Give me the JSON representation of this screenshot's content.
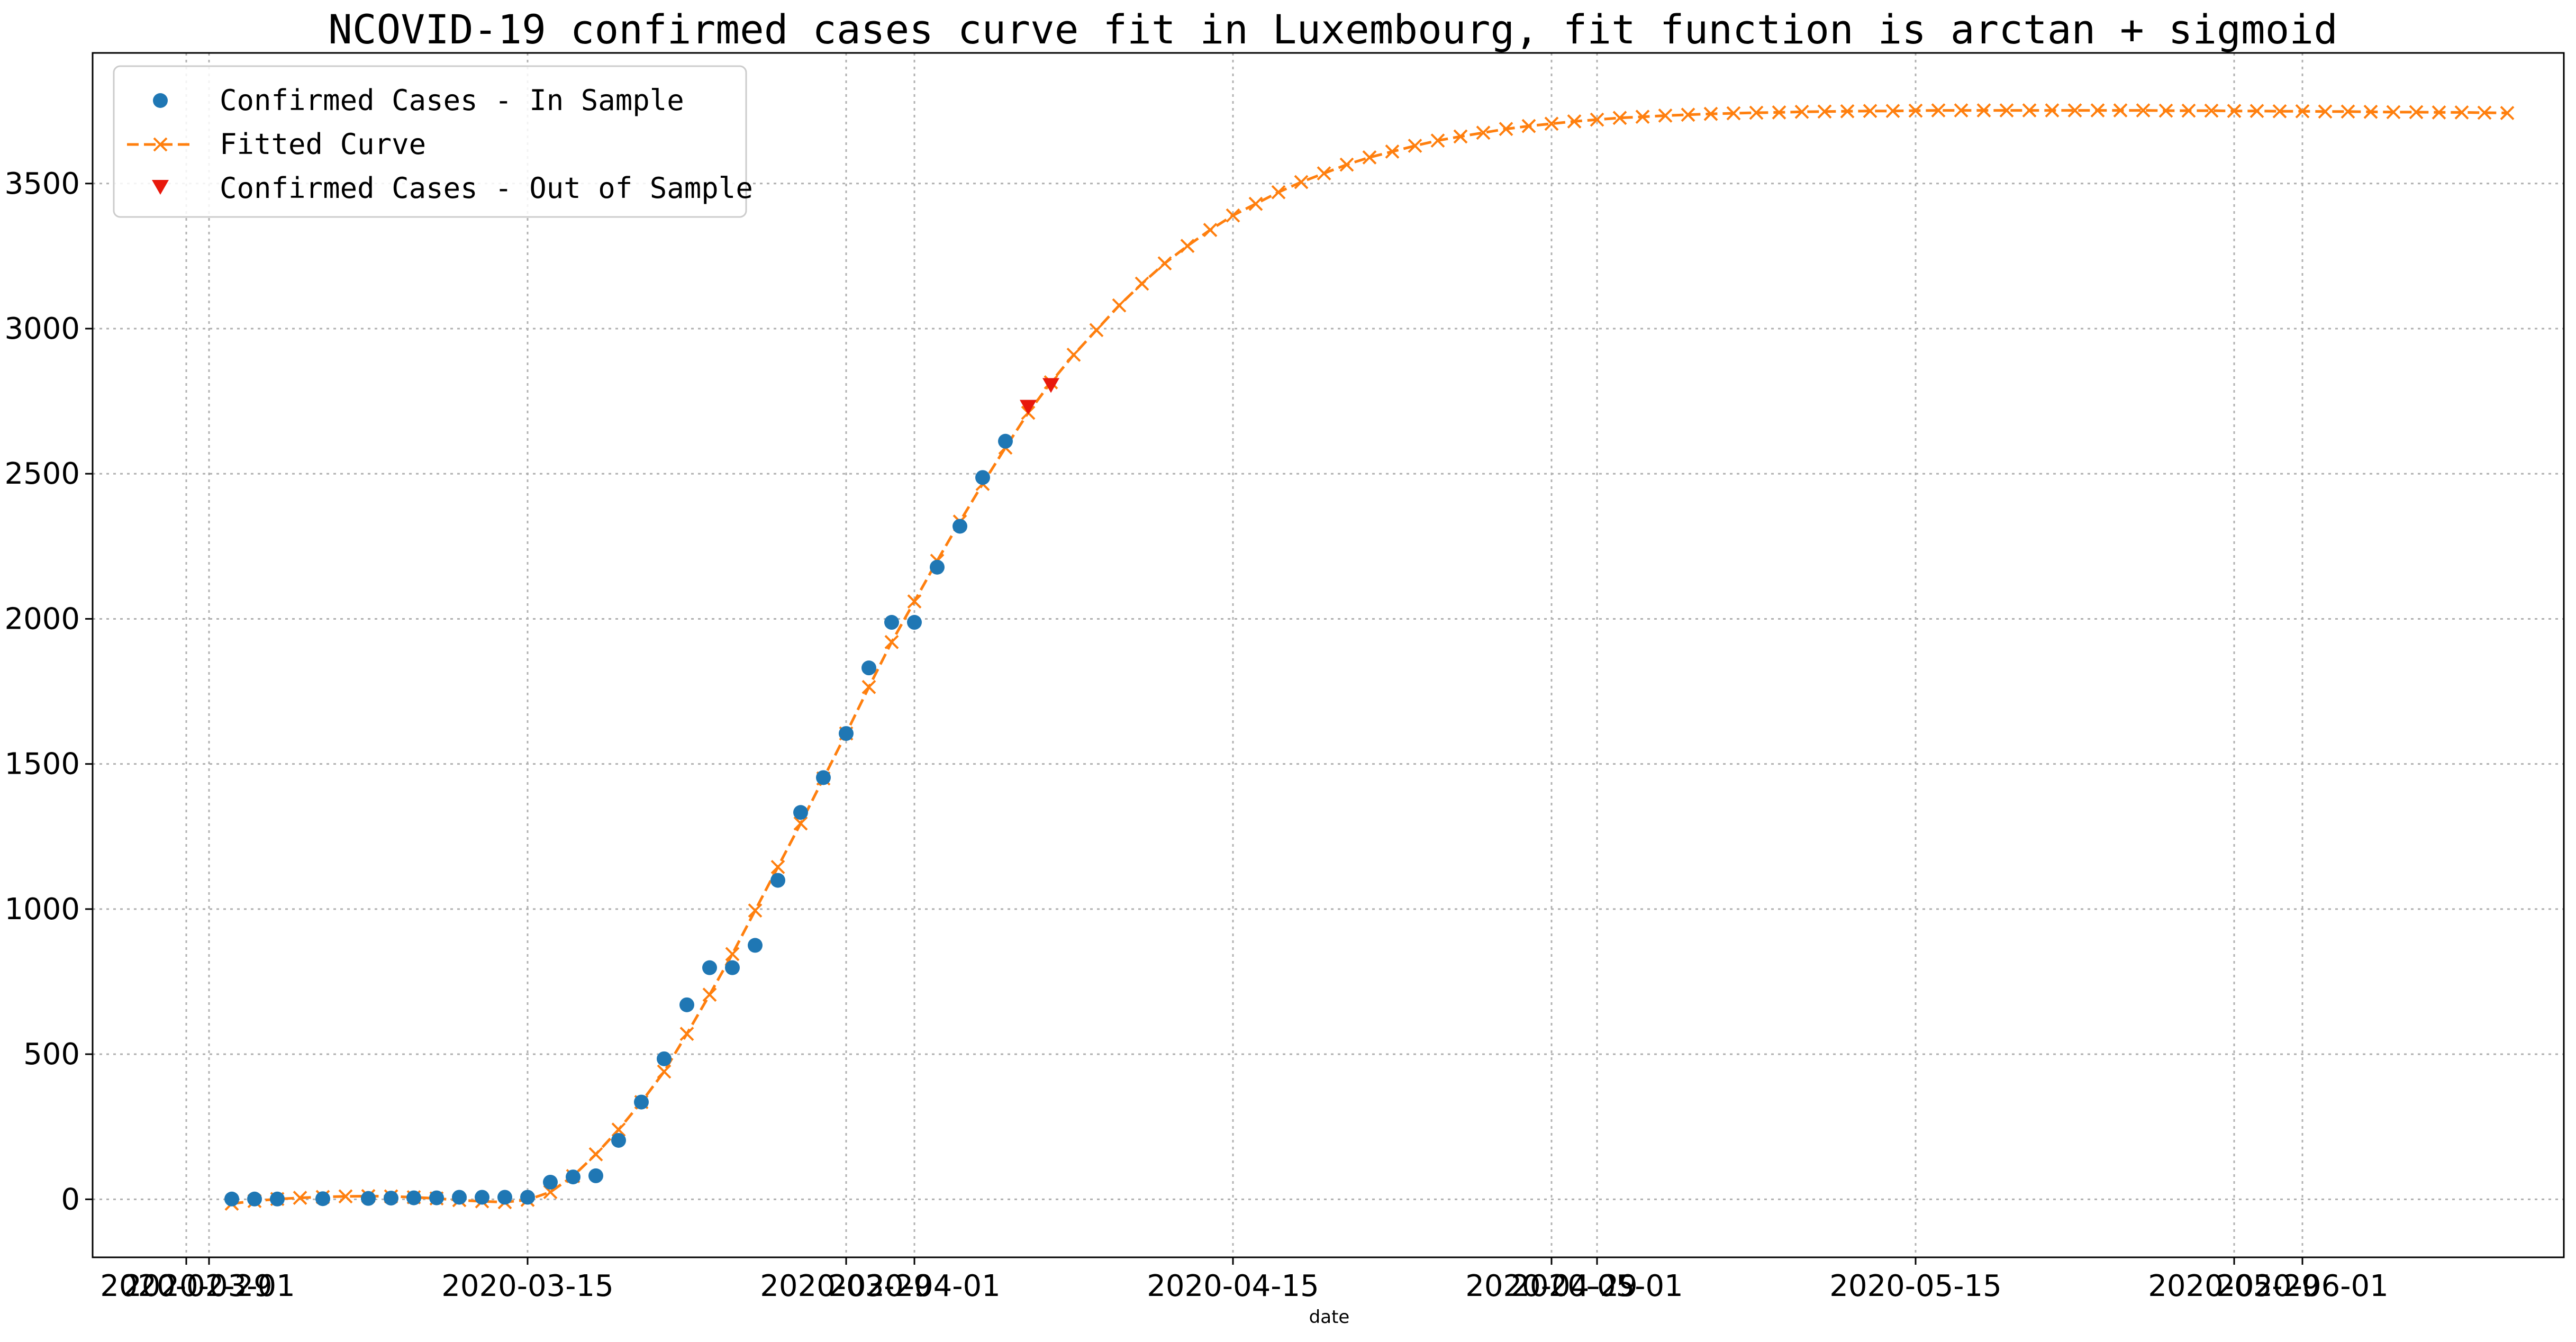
{
  "chart_data": {
    "type": "line",
    "title": "NCOVID-19 confirmed cases curve fit in Luxembourg, fit function is arctan + sigmoid",
    "xlabel": "date",
    "ylabel": "",
    "ylim": [
      -200,
      3950
    ],
    "grid": true,
    "legend_position": "top-left",
    "y_ticks": [
      0,
      500,
      1000,
      1500,
      2000,
      2500,
      3000,
      3500
    ],
    "x_ticks": [
      {
        "date": "2020-02-29",
        "label": "2020-02-29"
      },
      {
        "date": "2020-03-01",
        "label": "2020-03-01"
      },
      {
        "date": "2020-03-15",
        "label": "2020-03-15"
      },
      {
        "date": "2020-03-29",
        "label": "2020-03-29"
      },
      {
        "date": "2020-04-01",
        "label": "2020-04-01"
      },
      {
        "date": "2020-04-15",
        "label": "2020-04-15"
      },
      {
        "date": "2020-04-29",
        "label": "2020-04-29"
      },
      {
        "date": "2020-05-01",
        "label": "2020-05-01"
      },
      {
        "date": "2020-05-15",
        "label": "2020-05-15"
      },
      {
        "date": "2020-05-29",
        "label": "2020-05-29"
      },
      {
        "date": "2020-06-01",
        "label": "2020-06-01"
      }
    ],
    "series": [
      {
        "name": "Confirmed Cases - In Sample",
        "color": "#1f77b4",
        "marker": "circle",
        "line": "none",
        "start_date": "2020-03-02",
        "values": [
          1,
          1,
          1,
          null,
          2,
          null,
          3,
          4,
          5,
          5,
          7,
          7,
          7,
          7,
          59,
          77,
          81,
          203,
          335,
          484,
          670,
          798,
          798,
          875,
          1099,
          1333,
          1453,
          1605,
          1831,
          1988,
          1988,
          2178,
          2319,
          2487,
          2612
        ]
      },
      {
        "name": "Fitted Curve",
        "color": "#ff7f0e",
        "marker": "x",
        "line": "dashed",
        "start_date": "2020-03-02",
        "values": [
          -15,
          -6,
          1,
          5,
          8,
          10,
          11,
          10,
          7,
          3,
          -3,
          -7,
          -10,
          -2,
          25,
          80,
          155,
          240,
          335,
          440,
          570,
          705,
          845,
          995,
          1145,
          1295,
          1450,
          1605,
          1765,
          1920,
          2060,
          2200,
          2335,
          2465,
          2590,
          2710,
          2815,
          2910,
          2995,
          3080,
          3155,
          3225,
          3285,
          3340,
          3390,
          3430,
          3470,
          3505,
          3535,
          3565,
          3590,
          3610,
          3630,
          3648,
          3662,
          3675,
          3688,
          3698,
          3706,
          3714,
          3720,
          3726,
          3730,
          3734,
          3737,
          3740,
          3742,
          3744,
          3745,
          3747,
          3748,
          3749,
          3750,
          3750,
          3751,
          3752,
          3752,
          3752,
          3752,
          3752,
          3752,
          3752,
          3752,
          3752,
          3752,
          3751,
          3751,
          3751,
          3750,
          3750,
          3749,
          3749,
          3748,
          3748,
          3747,
          3746,
          3746,
          3745,
          3745,
          3744,
          3743
        ]
      },
      {
        "name": "Confirmed Cases - Out of Sample",
        "color": "#e8180c",
        "marker": "triangle-down",
        "line": "none",
        "x": [
          "2020-04-06",
          "2020-04-07"
        ],
        "values": [
          2729,
          2804
        ]
      }
    ]
  }
}
